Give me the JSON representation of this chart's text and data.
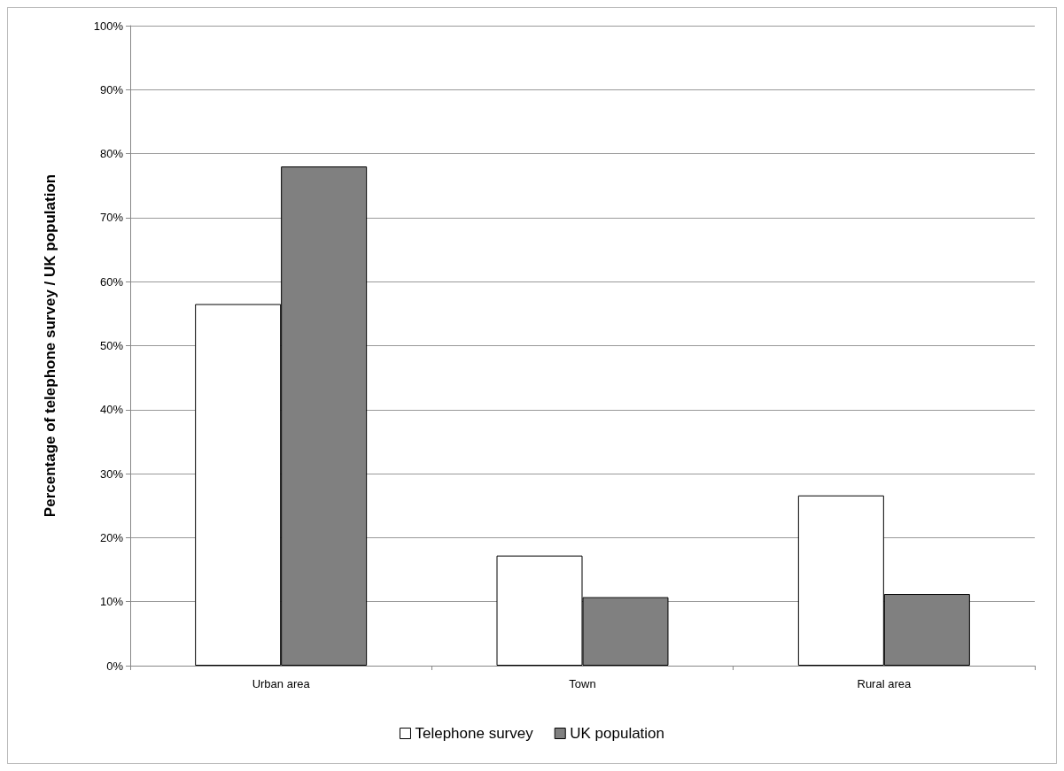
{
  "chart_data": {
    "type": "bar",
    "ylabel": "Percentage of telephone survey / UK population",
    "categories": [
      "Urban area",
      "Town",
      "Rural area"
    ],
    "series": [
      {
        "name": "Telephone survey",
        "color": "#ffffff",
        "values": [
          56.5,
          17.2,
          26.6
        ]
      },
      {
        "name": "UK population",
        "color": "#808080",
        "values": [
          78.0,
          10.7,
          11.2
        ]
      }
    ],
    "ylim": [
      0,
      100
    ],
    "yticks": [
      {
        "value": 0,
        "label": "0%"
      },
      {
        "value": 10,
        "label": "10%"
      },
      {
        "value": 20,
        "label": "20%"
      },
      {
        "value": 30,
        "label": "30%"
      },
      {
        "value": 40,
        "label": "40%"
      },
      {
        "value": 50,
        "label": "50%"
      },
      {
        "value": 60,
        "label": "60%"
      },
      {
        "value": 70,
        "label": "70%"
      },
      {
        "value": 80,
        "label": "80%"
      },
      {
        "value": 90,
        "label": "90%"
      },
      {
        "value": 100,
        "label": "100%"
      }
    ],
    "grid": "y",
    "legend": "bottom"
  }
}
